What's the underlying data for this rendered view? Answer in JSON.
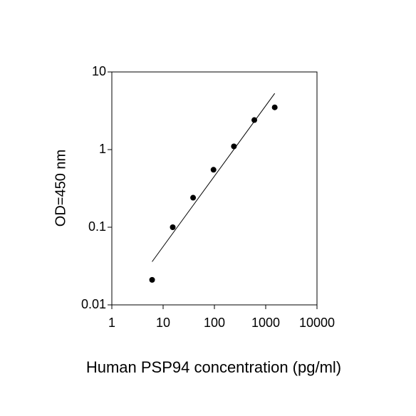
{
  "chart_data": {
    "type": "scatter",
    "x_label": "Human PSP94 concentration (pg/ml)",
    "y_label": "OD=450 nm",
    "series": [
      {
        "color": "#000000",
        "x": [
          6.1,
          15.4,
          38.4,
          96,
          240,
          600,
          1500
        ],
        "values": [
          0.021,
          0.1,
          0.24,
          0.55,
          1.1,
          2.4,
          3.5
        ]
      }
    ],
    "trendline": {
      "color": "#000000",
      "x": [
        6.1,
        1500
      ],
      "values": [
        0.036,
        5.3
      ]
    },
    "xlim": [
      1,
      10000
    ],
    "xticks": [
      1,
      10,
      100,
      1000,
      10000
    ],
    "ylim": [
      0.01,
      10
    ],
    "yticks": [
      0.01,
      0.1,
      1,
      10
    ],
    "xscale": "log",
    "yscale": "log",
    "grid": false
  }
}
